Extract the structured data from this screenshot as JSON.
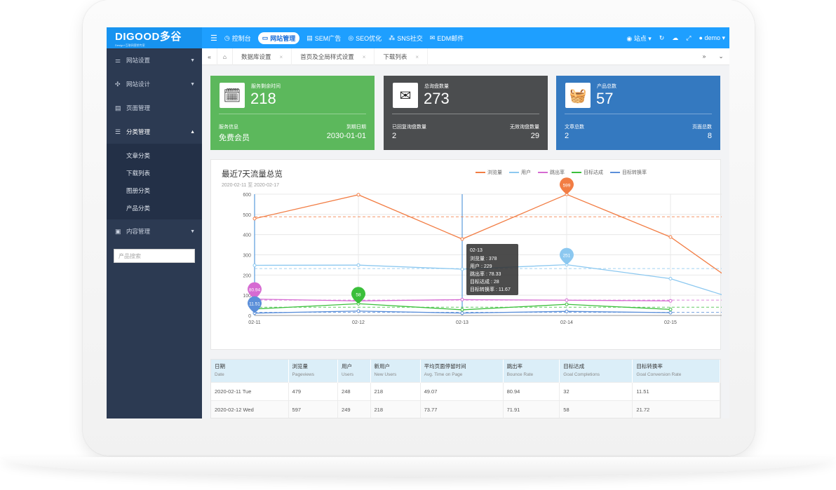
{
  "brand": {
    "name": "DIGOOD多谷",
    "tagline": "Design+互联网营销专家"
  },
  "top_nav": [
    {
      "label": "控制台",
      "icon": "dashboard-icon"
    },
    {
      "label": "网站管理",
      "icon": "monitor-icon",
      "active": true
    },
    {
      "label": "SEM广告",
      "icon": "ad-icon"
    },
    {
      "label": "SEO优化",
      "icon": "seo-icon"
    },
    {
      "label": "SNS社交",
      "icon": "share-icon"
    },
    {
      "label": "EDM邮件",
      "icon": "mail-icon"
    }
  ],
  "top_right": {
    "site_label": "站点",
    "user": "demo"
  },
  "sidebar": {
    "items": [
      {
        "label": "网站设置"
      },
      {
        "label": "网站设计"
      },
      {
        "label": "页面管理"
      },
      {
        "label": "分类管理"
      },
      {
        "label": "内容管理"
      }
    ],
    "sub_items": [
      "文章分类",
      "下载列表",
      "图册分类",
      "产品分类"
    ],
    "search_placeholder": "产品搜索"
  },
  "tabs": [
    "数据库设置",
    "首页及全局样式设置",
    "下载列表"
  ],
  "cards": [
    {
      "label": "服务剩余时间",
      "value": "218",
      "foot_left_label": "服务信息",
      "foot_left_value": "免费会员",
      "foot_right_label": "到期日期",
      "foot_right_value": "2030-01-01",
      "color": "#5cb85c",
      "icon": "calendar-icon"
    },
    {
      "label": "总询盘数量",
      "value": "273",
      "foot_left_label": "已回复询盘数量",
      "foot_left_value": "2",
      "foot_right_label": "无效询盘数量",
      "foot_right_value": "29",
      "color": "#4b4d4f",
      "icon": "envelope-icon"
    },
    {
      "label": "产品总数",
      "value": "57",
      "foot_left_label": "文章总数",
      "foot_left_value": "2",
      "foot_right_label": "页面总数",
      "foot_right_value": "8",
      "color": "#3479c0",
      "icon": "basket-icon"
    }
  ],
  "chart_data": {
    "type": "line",
    "title": "最近7天流量总览",
    "subtitle": "2020-02-11 至 2020-02-17",
    "categories": [
      "02-11",
      "02-12",
      "02-13",
      "02-14",
      "02-15"
    ],
    "ylim": [
      0,
      600
    ],
    "yticks": [
      0,
      100,
      200,
      300,
      400,
      500,
      600
    ],
    "series": [
      {
        "name": "浏览量",
        "color": "#f27d44",
        "values": [
          479,
          597,
          378,
          599,
          388
        ]
      },
      {
        "name": "用户",
        "color": "#8cc8f0",
        "values": [
          248,
          249,
          229,
          251,
          182
        ]
      },
      {
        "name": "跳出率",
        "color": "#d66bd2",
        "values": [
          80.94,
          71.91,
          78.33,
          75.5,
          72.0
        ]
      },
      {
        "name": "目标达成",
        "color": "#3bbf3b",
        "values": [
          32,
          58,
          28,
          55,
          30
        ]
      },
      {
        "name": "目标转换率",
        "color": "#5b8fd9",
        "values": [
          11.51,
          21.72,
          11.67,
          20.1,
          14.0
        ]
      }
    ],
    "markers": [
      {
        "label": "599",
        "series": 0,
        "index": 3
      },
      {
        "label": "251",
        "series": 1,
        "index": 3
      },
      {
        "label": "80.94",
        "series": 2,
        "index": 0
      },
      {
        "label": "58",
        "series": 3,
        "index": 1
      },
      {
        "label": "11.51",
        "series": 4,
        "index": 0
      }
    ],
    "tooltip": {
      "date": "02-13",
      "lines": [
        "浏览量 : 378",
        "用户 : 229",
        "跳出率 : 78.33",
        "目标达成 : 28",
        "目标转换率 : 11.67"
      ]
    }
  },
  "table": {
    "headers": [
      {
        "cn": "日期",
        "en": "Date"
      },
      {
        "cn": "浏览量",
        "en": "Pageviews"
      },
      {
        "cn": "用户",
        "en": "Users"
      },
      {
        "cn": "新用户",
        "en": "New Users"
      },
      {
        "cn": "平均页面停留时间",
        "en": "Avg. Time on Page"
      },
      {
        "cn": "跳出率",
        "en": "Bounce Rate"
      },
      {
        "cn": "目标达成",
        "en": "Goal Completions"
      },
      {
        "cn": "目标转换率",
        "en": "Goal Conversion Rate"
      }
    ],
    "rows": [
      [
        "2020-02-11 Tue",
        "479",
        "248",
        "218",
        "49.07",
        "80.94",
        "32",
        "11.51"
      ],
      [
        "2020-02-12 Wed",
        "597",
        "249",
        "218",
        "73.77",
        "71.91",
        "58",
        "21.72"
      ]
    ]
  }
}
